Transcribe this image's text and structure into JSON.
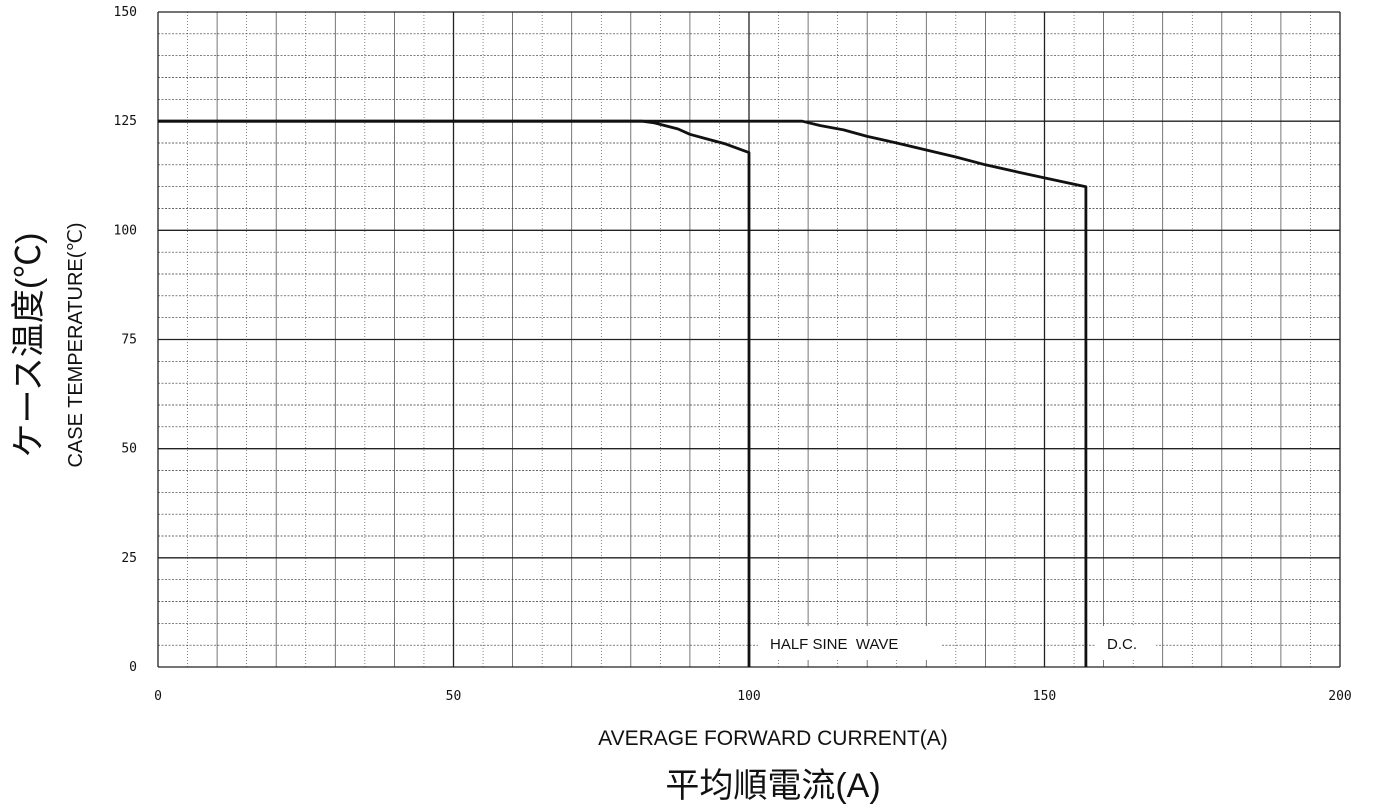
{
  "chart_data": {
    "type": "line",
    "xlabel": "AVERAGE FORWARD CURRENT(A)",
    "xlabel_jp": "平均順電流(A)",
    "ylabel": "CASE TEMPERATURE(℃)",
    "ylabel_jp": "ケース温度(℃)",
    "xlim": [
      0,
      200
    ],
    "ylim": [
      0,
      150
    ],
    "x_ticks": [
      "0",
      "50",
      "100",
      "150",
      "200"
    ],
    "y_ticks": [
      "0",
      "25",
      "50",
      "75",
      "100",
      "125",
      "150"
    ],
    "grid": true,
    "series": [
      {
        "name": "HALF SINE  WAVE",
        "points": [
          [
            0,
            125
          ],
          [
            82,
            125
          ],
          [
            84,
            124.6
          ],
          [
            88,
            123.2
          ],
          [
            90,
            122
          ],
          [
            93,
            120.9
          ],
          [
            96,
            119.8
          ],
          [
            100,
            117.8
          ],
          [
            100,
            0
          ]
        ]
      },
      {
        "name": "D.C.",
        "points": [
          [
            0,
            125
          ],
          [
            109,
            125
          ],
          [
            112,
            124
          ],
          [
            116,
            123
          ],
          [
            120,
            121.5
          ],
          [
            125,
            120
          ],
          [
            130,
            118.4
          ],
          [
            135,
            116.8
          ],
          [
            140,
            115
          ],
          [
            145,
            113.5
          ],
          [
            150,
            112
          ],
          [
            157,
            110
          ],
          [
            157,
            0
          ]
        ]
      }
    ]
  }
}
